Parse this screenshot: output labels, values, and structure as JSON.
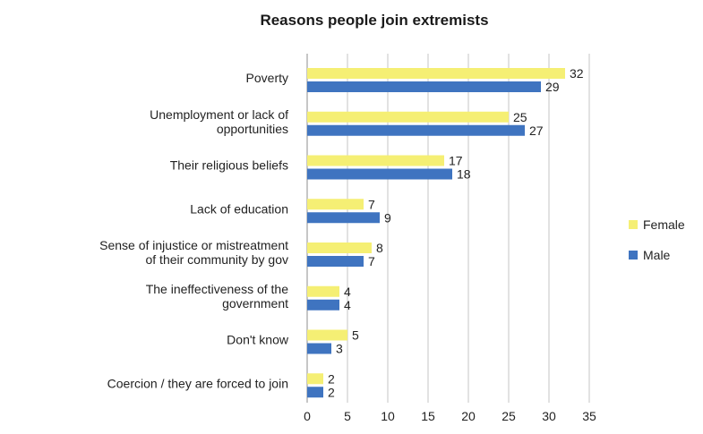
{
  "chart_data": {
    "type": "bar",
    "orientation": "horizontal",
    "title": "Reasons people join extremists",
    "categories": [
      [
        "Poverty"
      ],
      [
        "Unemployment or lack of",
        "opportunities"
      ],
      [
        "Their religious beliefs"
      ],
      [
        "Lack of education"
      ],
      [
        "Sense of injustice or mistreatment",
        "of their community by gov"
      ],
      [
        "The ineffectiveness of the",
        "government"
      ],
      [
        "Don't know"
      ],
      [
        "Coercion / they are forced to join"
      ]
    ],
    "series": [
      {
        "name": "Female",
        "color": "#f5ef74",
        "values": [
          32,
          25,
          17,
          7,
          8,
          4,
          5,
          2
        ]
      },
      {
        "name": "Male",
        "color": "#3f74c0",
        "values": [
          29,
          27,
          18,
          9,
          7,
          4,
          3,
          2
        ]
      }
    ],
    "xlim": [
      0,
      35
    ],
    "xticks": [
      0,
      5,
      10,
      15,
      20,
      25,
      30,
      35
    ],
    "grid": "vertical",
    "legend_position": "right",
    "data_labels": true
  }
}
